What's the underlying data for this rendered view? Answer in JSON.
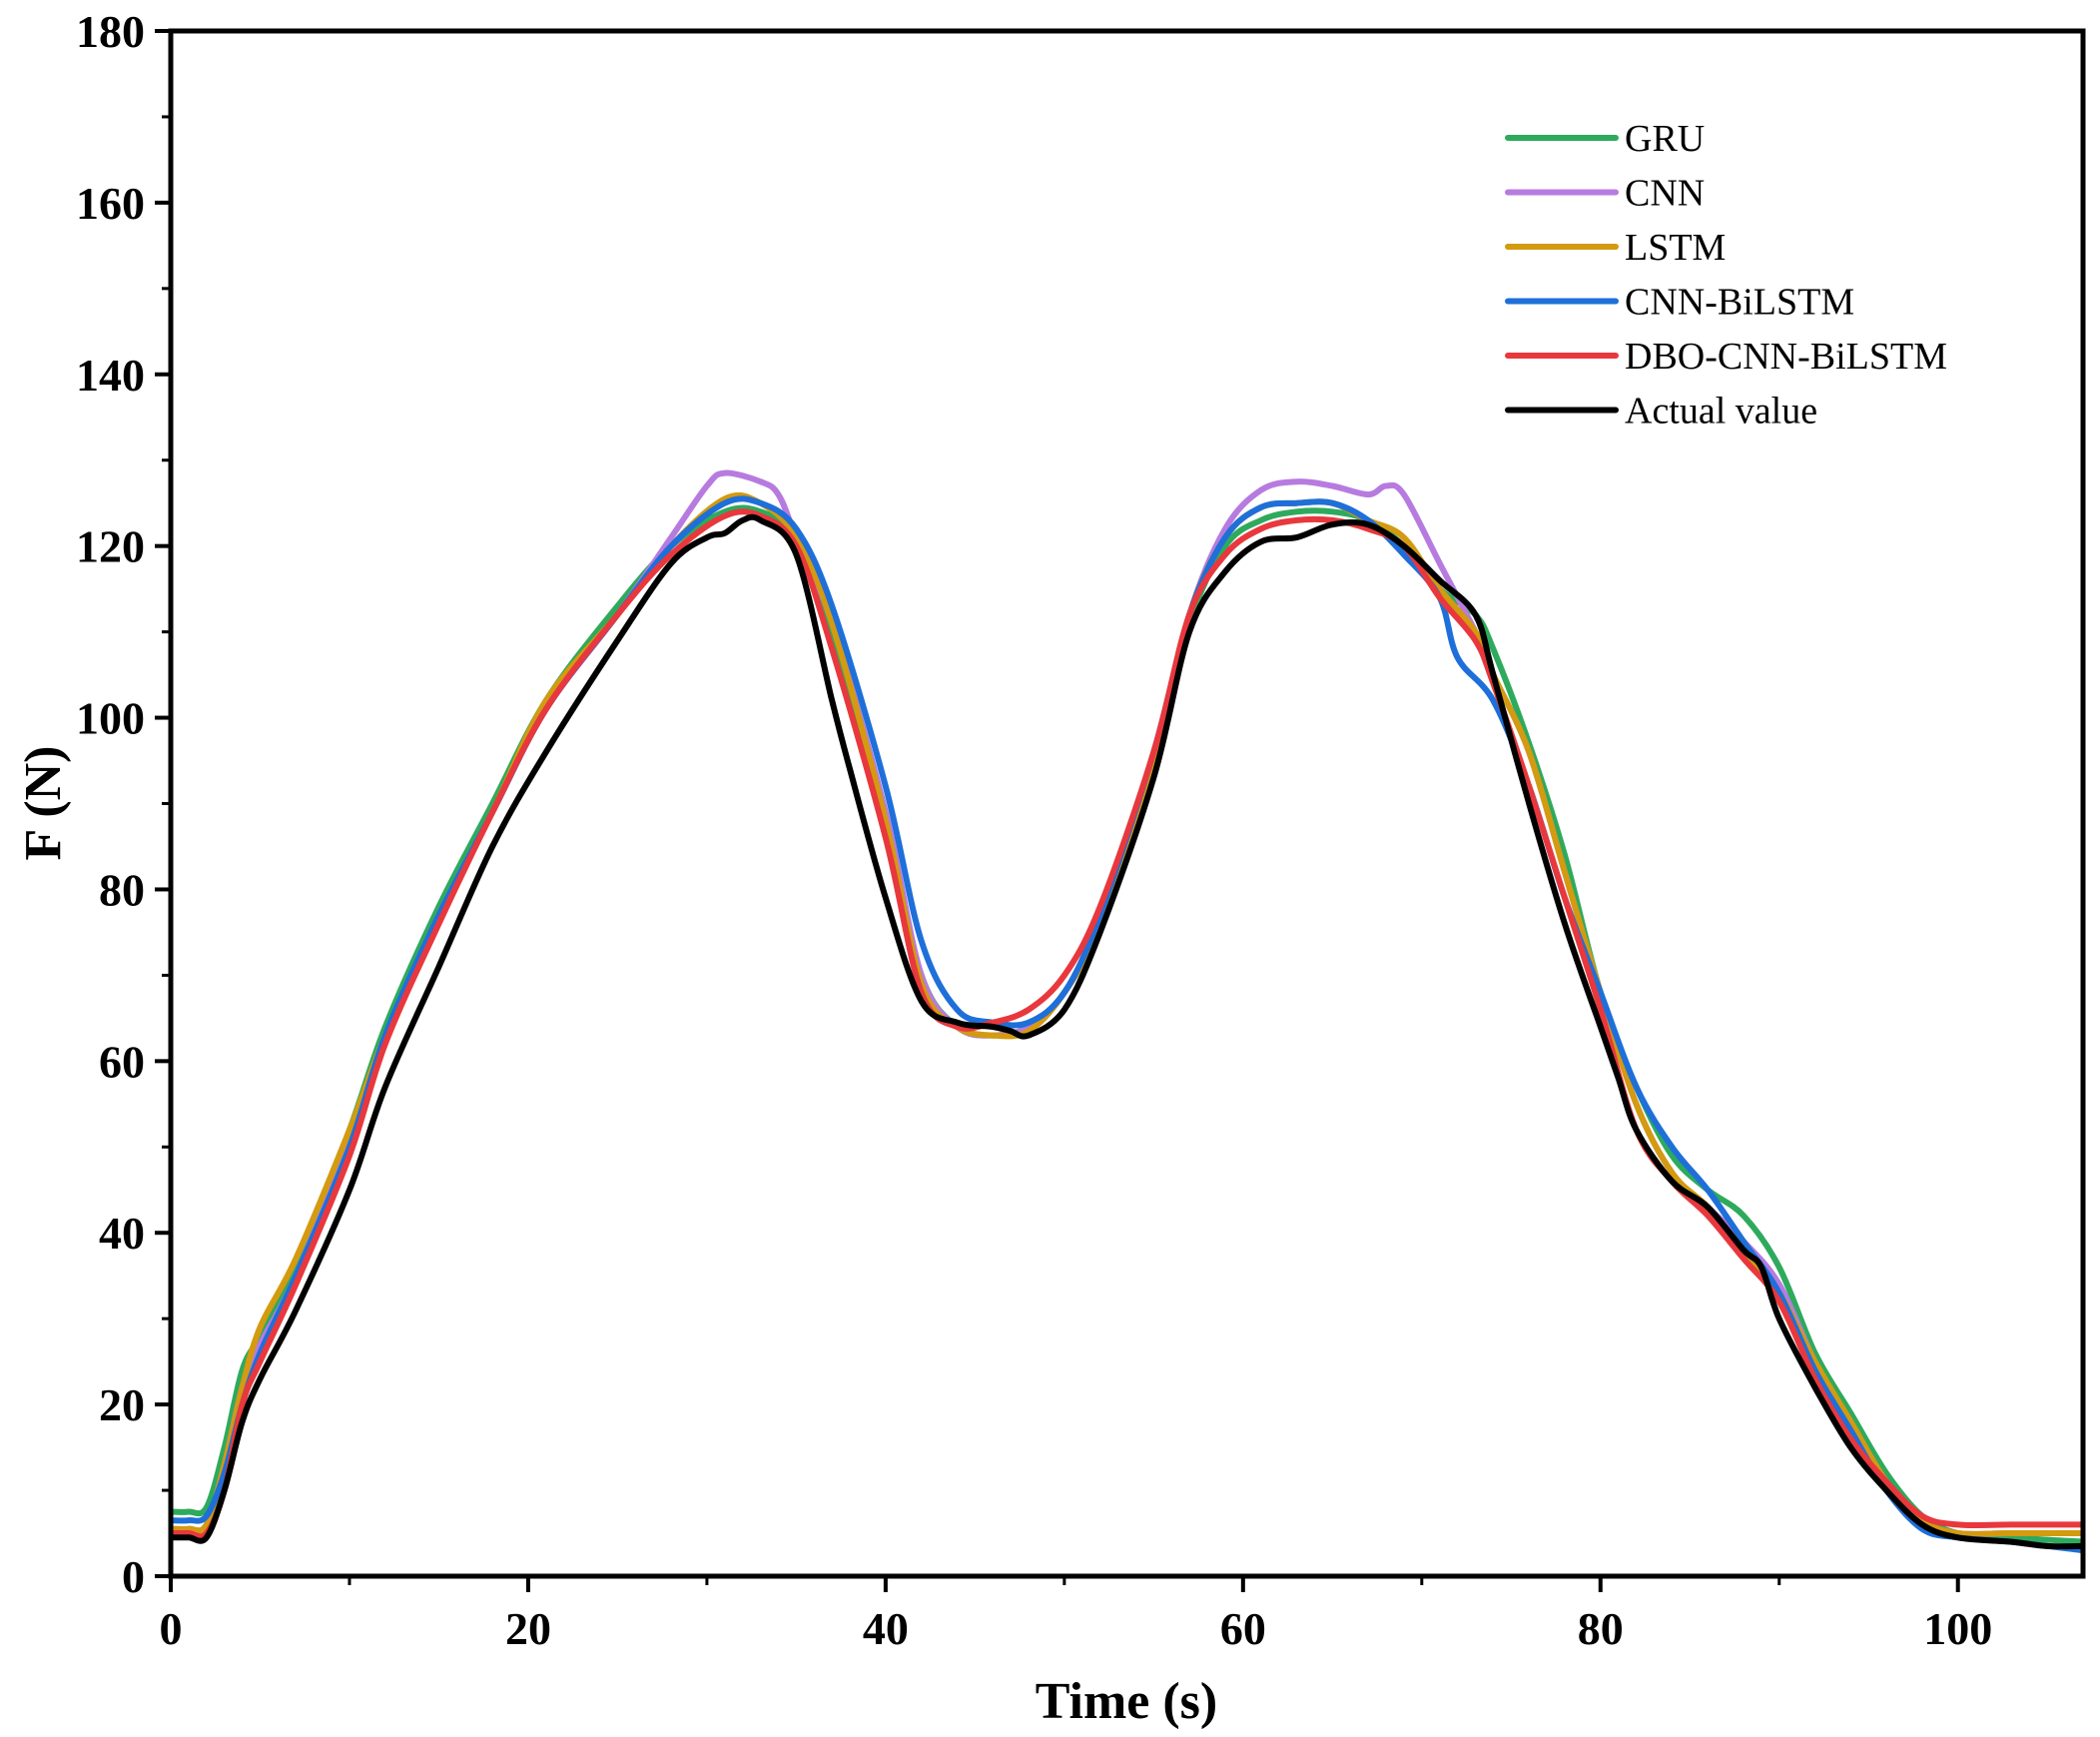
{
  "chart_data": {
    "type": "line",
    "title": "",
    "xlabel": "Time (s)",
    "ylabel": "F (N)",
    "xlim": [
      0,
      107
    ],
    "ylim": [
      0,
      180
    ],
    "xticks": [
      0,
      20,
      40,
      60,
      80,
      100
    ],
    "yticks": [
      0,
      20,
      40,
      60,
      80,
      100,
      120,
      140,
      160,
      180
    ],
    "xtick_labels": [
      "0",
      "20",
      "40",
      "60",
      "80",
      "100"
    ],
    "ytick_labels": [
      "0",
      "20",
      "40",
      "60",
      "80",
      "100",
      "120",
      "140",
      "160",
      "180"
    ],
    "grid": false,
    "legend_position": "top-right",
    "series": [
      {
        "name": "GRU",
        "color": "#2eaa5c",
        "x": [
          0,
          1,
          2,
          3,
          4,
          5,
          7,
          10,
          12,
          15,
          18,
          21,
          25,
          28,
          31,
          33,
          35,
          37,
          40,
          42,
          44,
          46,
          48,
          50,
          52,
          55,
          57,
          59,
          61,
          63,
          65,
          67,
          69,
          71,
          73,
          74,
          76,
          78,
          80,
          82,
          84,
          86,
          88,
          90,
          92,
          94,
          96,
          98,
          100,
          103,
          107
        ],
        "y": [
          7.5,
          7.5,
          8,
          15,
          24,
          28,
          36,
          52,
          64,
          78,
          90,
          102,
          113,
          120,
          124,
          124,
          121,
          110,
          88,
          70,
          64,
          63,
          64,
          68,
          76,
          95,
          111,
          120,
          123,
          124,
          124,
          123,
          120,
          115,
          112,
          108,
          97,
          84,
          68,
          57,
          49,
          45,
          42,
          36,
          26,
          19,
          12,
          7,
          5,
          4.5,
          4
        ]
      },
      {
        "name": "CNN",
        "color": "#b77be0",
        "x": [
          0,
          1,
          2,
          3,
          4,
          5,
          7,
          10,
          12,
          15,
          18,
          21,
          25,
          28,
          30,
          31,
          33,
          34,
          35,
          37,
          40,
          42,
          44,
          46,
          48,
          50,
          52,
          55,
          57,
          59,
          61,
          63,
          65,
          67,
          68,
          69,
          71,
          73,
          74,
          76,
          78,
          80,
          82,
          84,
          86,
          88,
          90,
          92,
          94,
          96,
          98,
          100,
          103,
          107
        ],
        "y": [
          5.5,
          5.5,
          6,
          13,
          22,
          27,
          35,
          51,
          63,
          77,
          89,
          101,
          112,
          121,
          127,
          128.5,
          127.5,
          126,
          121,
          111,
          89,
          70,
          64,
          63,
          64,
          68,
          76,
          95,
          112,
          122,
          126.5,
          127.5,
          127,
          126,
          127,
          126,
          118,
          110,
          105,
          96,
          82,
          68,
          55,
          47,
          43,
          39,
          34,
          25,
          18,
          11,
          6.5,
          5,
          5,
          5
        ]
      },
      {
        "name": "LSTM",
        "color": "#d49a10",
        "x": [
          0,
          1,
          2,
          3,
          4,
          5,
          7,
          10,
          12,
          15,
          18,
          21,
          25,
          28,
          31,
          33,
          35,
          37,
          40,
          42,
          44,
          46,
          48,
          50,
          52,
          55,
          57,
          59,
          61,
          63,
          65,
          67,
          69,
          71,
          73,
          74,
          76,
          78,
          80,
          82,
          84,
          86,
          88,
          90,
          92,
          94,
          96,
          98,
          100,
          103,
          107
        ],
        "y": [
          5.5,
          5.5,
          6,
          13,
          22,
          29,
          37,
          52,
          63,
          77,
          89,
          102,
          112,
          120,
          125.5,
          125,
          121,
          111,
          88,
          69,
          64,
          63,
          63.5,
          68,
          76,
          95,
          112,
          121,
          124.5,
          125,
          125,
          123,
          121,
          115,
          110,
          105,
          96,
          82,
          68,
          55,
          47,
          43,
          38,
          33,
          25,
          18,
          11,
          6.5,
          5,
          5,
          5
        ]
      },
      {
        "name": "CNN-BiLSTM",
        "color": "#1e6fd9",
        "x": [
          0,
          1,
          2,
          3,
          4,
          5,
          7,
          10,
          12,
          15,
          18,
          21,
          25,
          28,
          31,
          33,
          35,
          37,
          40,
          42,
          44,
          46,
          48,
          50,
          52,
          55,
          57,
          59,
          61,
          63,
          65,
          67,
          69,
          71,
          72,
          74,
          76,
          78,
          80,
          82,
          84,
          86,
          88,
          90,
          92,
          94,
          96,
          98,
          100,
          103,
          107
        ],
        "y": [
          6.5,
          6.5,
          7,
          12,
          20,
          26,
          35,
          50,
          63,
          77,
          89,
          101,
          112,
          120,
          125,
          125,
          122,
          113,
          92,
          74,
          66,
          64.5,
          64.5,
          68,
          77,
          96,
          112,
          121,
          124.5,
          125,
          125,
          123,
          119,
          114,
          107,
          102,
          92,
          79,
          68,
          57,
          50,
          45,
          39,
          33,
          24,
          17,
          10,
          5.5,
          4.5,
          4,
          3
        ]
      },
      {
        "name": "DBO-CNN-BiLSTM",
        "color": "#e8383d",
        "x": [
          0,
          1,
          2,
          3,
          4,
          5,
          7,
          10,
          12,
          15,
          18,
          21,
          25,
          28,
          31,
          33,
          35,
          37,
          40,
          42,
          44,
          46,
          48,
          50,
          52,
          55,
          57,
          59,
          61,
          63,
          65,
          67,
          69,
          71,
          73,
          74,
          76,
          78,
          80,
          82,
          84,
          86,
          88,
          90,
          92,
          94,
          96,
          98,
          100,
          103,
          107
        ],
        "y": [
          5,
          5,
          5,
          10,
          20,
          25,
          34,
          49,
          62,
          76,
          89,
          101,
          112,
          119,
          123.5,
          123.5,
          120,
          108,
          86,
          68,
          64,
          64.5,
          66,
          70,
          78,
          96,
          112,
          119,
          122,
          123,
          123,
          122,
          120,
          114,
          109,
          104,
          92,
          79,
          66,
          52,
          46,
          42,
          37,
          32,
          23,
          16,
          11,
          7,
          6,
          6,
          6
        ]
      },
      {
        "name": "Actual value",
        "color": "#000000",
        "x": [
          0,
          1,
          2,
          3,
          4,
          5,
          7,
          10,
          12,
          15,
          18,
          21,
          25,
          28,
          30,
          31,
          32,
          33,
          35,
          37,
          38,
          40,
          42,
          44,
          46,
          47,
          48,
          50,
          52,
          55,
          57,
          59,
          61,
          63,
          65,
          67,
          69,
          71,
          73,
          74,
          76,
          78,
          80,
          81,
          82,
          84,
          86,
          88,
          89,
          90,
          92,
          94,
          96,
          98,
          100,
          103,
          105,
          107
        ],
        "y": [
          4.5,
          4.5,
          4.5,
          10,
          18,
          23,
          31,
          45,
          57,
          71,
          85,
          96,
          109,
          118,
          121,
          121.5,
          123,
          123,
          119,
          102,
          94,
          79,
          67,
          64.5,
          64,
          63.5,
          63,
          66,
          75,
          93,
          110,
          117,
          120.5,
          121,
          122.5,
          122.5,
          120,
          116,
          112,
          105,
          90,
          76,
          64,
          58,
          52,
          46,
          43,
          38,
          36,
          30,
          22,
          15,
          10,
          6,
          4.5,
          4,
          3.5,
          3.5
        ]
      }
    ]
  }
}
